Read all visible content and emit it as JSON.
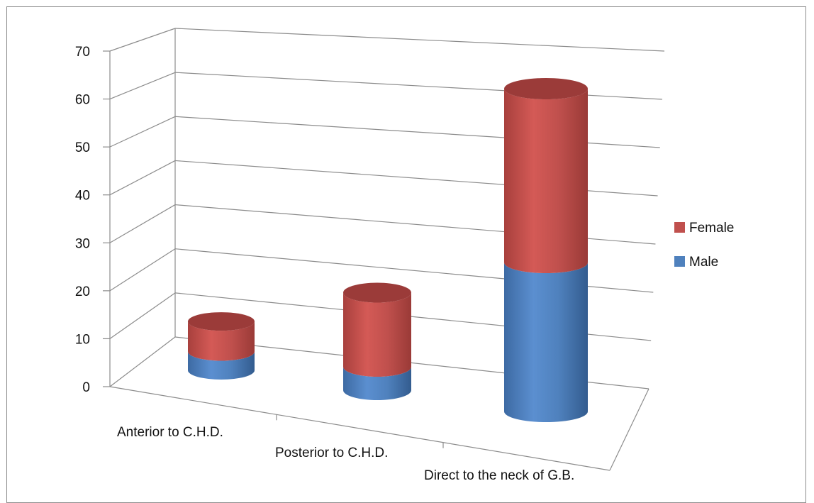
{
  "chart_data": {
    "type": "bar",
    "style": "3d-stacked-cylinder",
    "title": "",
    "xlabel": "",
    "ylabel": "",
    "categories": [
      "Anterior to C.H.D.",
      "Posterior to C.H.D.",
      "Direct to the neck of G.B."
    ],
    "series": [
      {
        "name": "Male",
        "values": [
          5,
          6,
          30
        ],
        "color": "#4f81bd"
      },
      {
        "name": "Female",
        "values": [
          8,
          19,
          35
        ],
        "color": "#c0504d"
      }
    ],
    "ylim": [
      0,
      70
    ],
    "yticks": [
      0,
      10,
      20,
      30,
      40,
      50,
      60,
      70
    ],
    "ytick_labels": [
      "0",
      "10",
      "20",
      "30",
      "40",
      "50",
      "60",
      "70"
    ],
    "grid": true,
    "legend": {
      "placement": "right",
      "entries": [
        "Female",
        "Male"
      ]
    }
  }
}
